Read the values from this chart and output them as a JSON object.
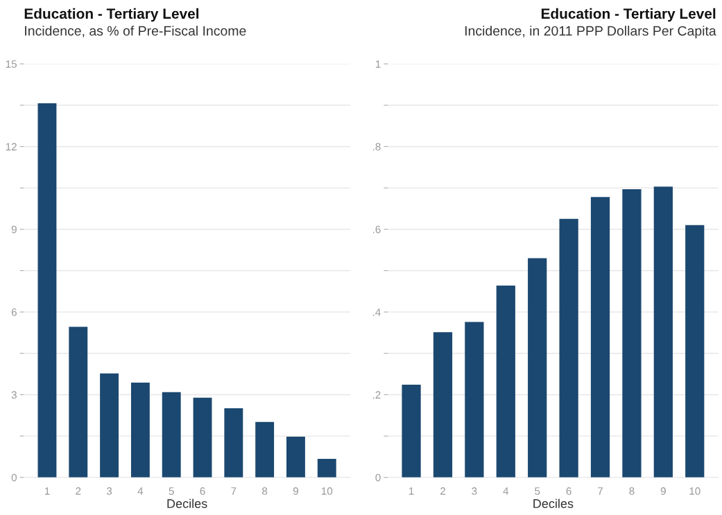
{
  "chart_data": [
    {
      "type": "bar",
      "title": "Education - Tertiary Level",
      "subtitle": "Incidence, as % of Pre-Fiscal Income",
      "xlabel": "Deciles",
      "categories": [
        "1",
        "2",
        "3",
        "4",
        "5",
        "6",
        "7",
        "8",
        "9",
        "10"
      ],
      "series": [
        {
          "color": "#1b4870",
          "values": [
            13.57,
            5.46,
            3.77,
            3.44,
            3.09,
            2.89,
            2.51,
            2.01,
            1.48,
            0.67
          ]
        }
      ],
      "ylim": [
        0,
        15
      ],
      "yticks": [
        0,
        {
          "value": 1.5,
          "label": null
        },
        3,
        {
          "value": 4.5,
          "label": null
        },
        6,
        {
          "value": 7.5,
          "label": null
        },
        9,
        {
          "value": 10.5,
          "label": null
        },
        12,
        {
          "value": 13.5,
          "label": null
        },
        15
      ],
      "grid": "y"
    },
    {
      "type": "bar",
      "title": "Education - Tertiary Level",
      "subtitle": "Incidence, in 2011 PPP Dollars Per Capita",
      "xlabel": "Deciles",
      "categories": [
        "1",
        "2",
        "3",
        "4",
        "5",
        "6",
        "7",
        "8",
        "9",
        "10"
      ],
      "series": [
        {
          "color": "#1b4870",
          "values": [
            0.224,
            0.351,
            0.376,
            0.464,
            0.53,
            0.625,
            0.678,
            0.697,
            0.703,
            0.61
          ]
        }
      ],
      "ylim": [
        0,
        1
      ],
      "yticks": [
        0,
        {
          "value": 0.1,
          "label": null
        },
        {
          "value": 0.2,
          "label": ".2"
        },
        {
          "value": 0.3,
          "label": null
        },
        {
          "value": 0.4,
          "label": ".4"
        },
        {
          "value": 0.5,
          "label": null
        },
        {
          "value": 0.6,
          "label": ".6"
        },
        {
          "value": 0.7,
          "label": null
        },
        {
          "value": 0.8,
          "label": ".8"
        },
        {
          "value": 0.9,
          "label": null
        },
        1
      ],
      "grid": "y"
    }
  ]
}
